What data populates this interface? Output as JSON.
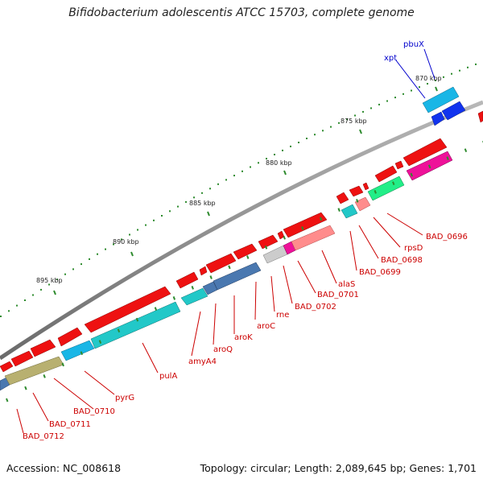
{
  "title": "Bifidobacterium adolescentis ATCC 15703, complete genome",
  "accession": "Accession: NC_008618",
  "summary": "Topology: circular; Length: 2,089,645 bp; Genes: 1,701",
  "colors": {
    "backbone": "#8a8a8a",
    "tick": "#2e8b2e",
    "label_red": "#cc0000",
    "label_blue": "#0000cc",
    "forward_cds": "#ee1111",
    "reverse_cds_cyan": "#22c8c8",
    "reverse_cds_steel": "#4a78b0",
    "reverse_cds_olive": "#b8b070",
    "pink": "#ff8c8c",
    "magenta": "#ee1199",
    "green": "#22ee88",
    "grey": "#cccccc",
    "sky": "#19b6e6",
    "blue": "#1133ee"
  },
  "kbp_labels": [
    "870 kbp",
    "875 kbp",
    "880 kbp",
    "885 kbp",
    "890 kbp",
    "895 kbp"
  ],
  "gene_labels": [
    {
      "text": "pbuX",
      "color": "blue"
    },
    {
      "text": "xpt",
      "color": "blue"
    },
    {
      "text": "BAD_0696",
      "color": "red"
    },
    {
      "text": "rpsD",
      "color": "red"
    },
    {
      "text": "BAD_0698",
      "color": "red"
    },
    {
      "text": "BAD_0699",
      "color": "red"
    },
    {
      "text": "alaS",
      "color": "red"
    },
    {
      "text": "BAD_0701",
      "color": "red"
    },
    {
      "text": "BAD_0702",
      "color": "red"
    },
    {
      "text": "rne",
      "color": "red"
    },
    {
      "text": "aroC",
      "color": "red"
    },
    {
      "text": "aroK",
      "color": "red"
    },
    {
      "text": "aroQ",
      "color": "red"
    },
    {
      "text": "amyA4",
      "color": "red"
    },
    {
      "text": "pulA",
      "color": "red"
    },
    {
      "text": "pyrG",
      "color": "red"
    },
    {
      "text": "BAD_0710",
      "color": "red"
    },
    {
      "text": "BAD_0711",
      "color": "red"
    },
    {
      "text": "BAD_0712",
      "color": "red"
    }
  ]
}
